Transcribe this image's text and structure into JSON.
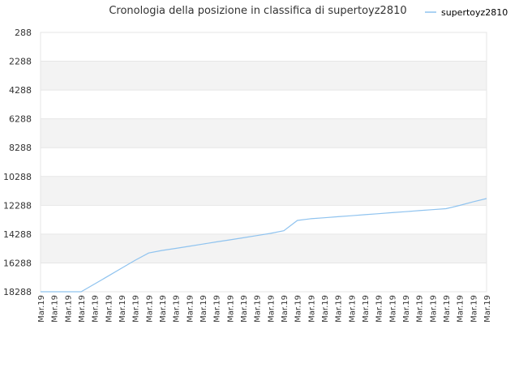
{
  "chart_data": {
    "type": "line",
    "title": "Cronologia della posizione in classifica di supertoyz2810",
    "xlabel": "",
    "ylabel": "",
    "y_inverted": true,
    "ylim": [
      18288,
      288
    ],
    "yticks": [
      288,
      2288,
      4288,
      6288,
      8288,
      10288,
      12288,
      14288,
      16288,
      18288
    ],
    "grid": true,
    "legend_position": "top-right",
    "colors": {
      "line": "#8fc3ef",
      "band_alt": "#f3f3f3",
      "band": "#ffffff",
      "gridline": "#e6e6e6",
      "text": "#333333"
    },
    "categories": [
      "Mar.19",
      "Mar.19",
      "Mar.19",
      "Mar.19",
      "Mar.19",
      "Mar.19",
      "Mar.19",
      "Mar.19",
      "Mar.19",
      "Mar.19",
      "Mar.19",
      "Mar.19",
      "Mar.19",
      "Mar.19",
      "Mar.19",
      "Mar.19",
      "Mar.19",
      "Mar.19",
      "Mar.19",
      "Mar.19",
      "Mar.19",
      "Mar.19",
      "Mar.19",
      "Mar.19",
      "Mar.19",
      "Mar.19",
      "Mar.19",
      "Mar.19",
      "Mar.19",
      "Mar.19",
      "Mar.19",
      "Mar.19",
      "Mar.19",
      "Mar.19"
    ],
    "series": [
      {
        "name": "supertoyz2810",
        "values": [
          18288,
          18288,
          18288,
          18288,
          17750,
          17200,
          16650,
          16100,
          15600,
          15420,
          15280,
          15130,
          14980,
          14830,
          14690,
          14540,
          14390,
          14240,
          14050,
          13340,
          13220,
          13150,
          13080,
          13010,
          12940,
          12870,
          12800,
          12730,
          12660,
          12590,
          12520,
          12300,
          12050,
          11820
        ]
      }
    ]
  }
}
